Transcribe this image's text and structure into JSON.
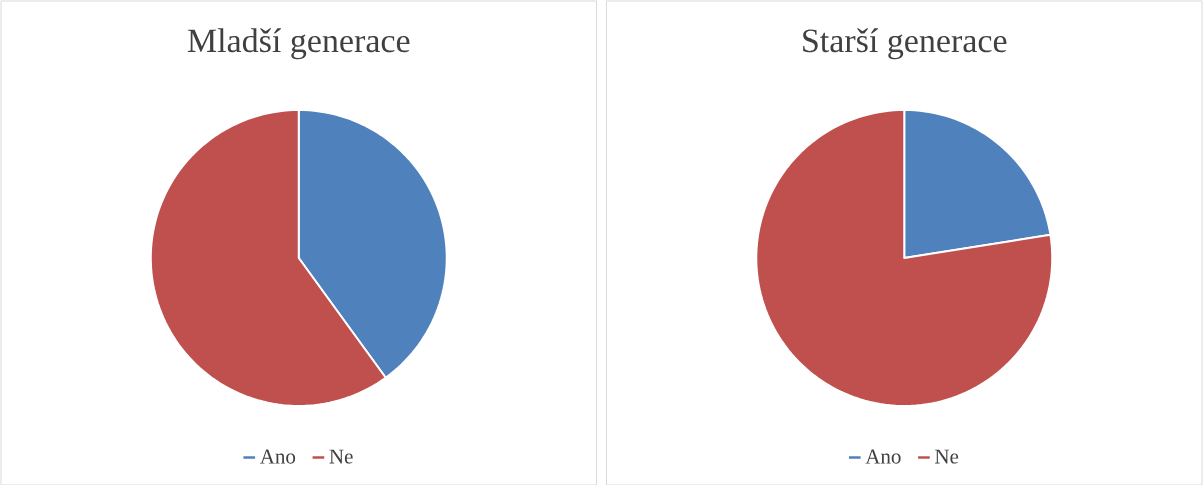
{
  "chart_data": [
    {
      "type": "pie",
      "title": "Mladší generace",
      "categories": [
        "Ano",
        "Ne"
      ],
      "values": [
        40,
        60
      ],
      "colors": [
        "#4f81bd",
        "#c0504d"
      ],
      "legend": "bottom"
    },
    {
      "type": "pie",
      "title": "Starší generace",
      "categories": [
        "Ano",
        "Ne"
      ],
      "values": [
        22.5,
        77.5
      ],
      "colors": [
        "#4f81bd",
        "#c0504d"
      ],
      "legend": "bottom"
    }
  ]
}
